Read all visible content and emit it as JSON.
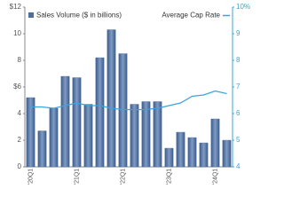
{
  "chart_data": {
    "type": "bar",
    "categories": [
      "'20Q1",
      null,
      null,
      null,
      "'21Q1",
      null,
      null,
      null,
      "'22Q1",
      null,
      null,
      null,
      "'23Q1",
      null,
      null,
      null,
      "'24Q1",
      null
    ],
    "series": [
      {
        "name": "Sales Volume ($ in billions)",
        "type": "bar",
        "color": "#4d6f9e",
        "values": [
          5.2,
          2.7,
          4.4,
          6.8,
          6.7,
          4.7,
          8.2,
          10.3,
          8.5,
          4.7,
          4.9,
          4.9,
          1.4,
          2.6,
          2.2,
          1.8,
          3.6,
          2.0
        ]
      },
      {
        "name": "Average Cap Rate",
        "type": "line",
        "axis": "y2",
        "color": "#3ba3dc",
        "values": [
          6.25,
          6.25,
          6.2,
          6.3,
          6.4,
          6.3,
          6.3,
          6.2,
          6.15,
          6.15,
          6.15,
          6.2,
          6.3,
          6.4,
          6.65,
          6.7,
          6.85,
          6.75
        ]
      }
    ],
    "ylim": [
      0,
      12
    ],
    "yticks": [
      0,
      2,
      4,
      {
        "value": 6,
        "label": "$6"
      },
      8,
      10,
      {
        "value": 12,
        "label": "$12"
      }
    ],
    "y2lim": [
      4,
      10
    ],
    "y2ticks": [
      4,
      5,
      6,
      7,
      8,
      9,
      {
        "value": 10,
        "label": "10%"
      }
    ],
    "grid": false
  }
}
